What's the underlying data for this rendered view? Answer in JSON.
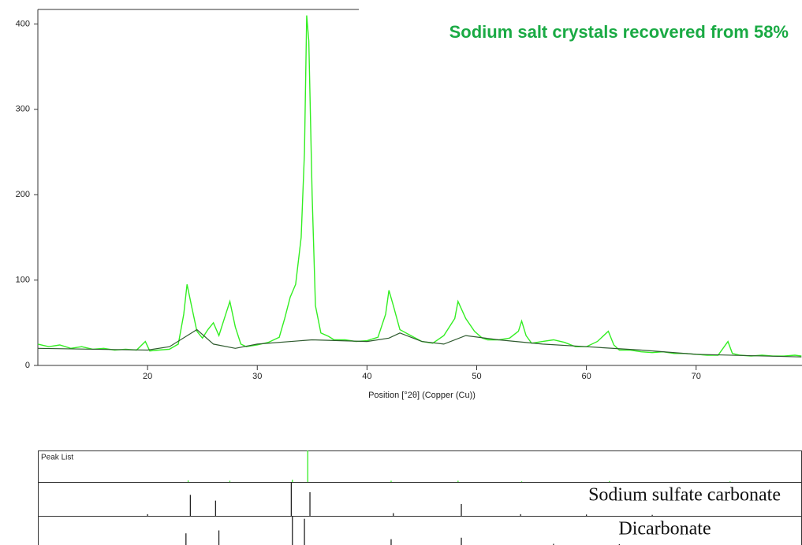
{
  "chart_data": [
    {
      "type": "line",
      "title": "Sodium salt crystals recovered from 58%",
      "x_label": "Position [°2θ] (Copper (Cu))",
      "xlim": [
        10,
        79.65
      ],
      "ylim": [
        0,
        417
      ],
      "xticks": [
        20,
        30,
        40,
        50,
        60,
        70
      ],
      "yticks": [
        0,
        100,
        200,
        300,
        400
      ],
      "series": [
        {
          "color": "#33ee22",
          "x": [
            10,
            11,
            12,
            13,
            14,
            15,
            16,
            17,
            18,
            19,
            19.8,
            20.2,
            21,
            22,
            22.8,
            23.3,
            23.6,
            24,
            24.5,
            25,
            25.5,
            26,
            26.5,
            27,
            27.5,
            28,
            28.5,
            29,
            30,
            31,
            32,
            32.5,
            33,
            33.5,
            34,
            34.3,
            34.5,
            34.7,
            35,
            35.3,
            35.8,
            36.5,
            37,
            38,
            39,
            40,
            41,
            41.7,
            42,
            42.4,
            43,
            44,
            45,
            46,
            47,
            48,
            48.3,
            49,
            49.8,
            50.5,
            51,
            52,
            53,
            53.8,
            54.1,
            54.5,
            55,
            56,
            57,
            58,
            59,
            60,
            61,
            62,
            62.5,
            63,
            64,
            65,
            66,
            67,
            68,
            69,
            70,
            71,
            72,
            72.9,
            73.3,
            74,
            75,
            76,
            77,
            78,
            79,
            79.6
          ],
          "values": [
            25,
            22,
            24,
            20,
            22,
            19,
            20,
            18,
            19,
            18,
            28,
            17,
            18,
            19,
            25,
            60,
            95,
            70,
            40,
            32,
            42,
            50,
            35,
            55,
            75,
            45,
            25,
            22,
            24,
            27,
            33,
            55,
            80,
            95,
            150,
            250,
            410,
            380,
            200,
            70,
            38,
            34,
            30,
            30,
            28,
            29,
            33,
            60,
            88,
            70,
            42,
            35,
            28,
            26,
            35,
            55,
            75,
            55,
            40,
            32,
            30,
            30,
            32,
            40,
            52,
            35,
            26,
            28,
            30,
            27,
            22,
            22,
            28,
            40,
            24,
            18,
            18,
            16,
            15,
            16,
            14,
            14,
            13,
            12,
            12,
            28,
            14,
            12,
            11,
            12,
            11,
            11,
            12,
            11
          ]
        },
        {
          "color": "#2e5a2e",
          "x": [
            10,
            20,
            22,
            24.5,
            26,
            28,
            30,
            35,
            40,
            42,
            43,
            45,
            47,
            49,
            52,
            56,
            60,
            65,
            70,
            79.6
          ],
          "values": [
            20,
            18,
            22,
            42,
            25,
            20,
            25,
            30,
            28,
            32,
            38,
            28,
            25,
            35,
            30,
            25,
            22,
            18,
            13,
            10
          ]
        }
      ]
    },
    {
      "type": "stick",
      "title": "Peak List",
      "color": "#33ee22",
      "x": [
        23.7,
        27.5,
        33.2,
        34.6,
        42.2,
        48.3,
        54.1,
        62.1,
        73.1
      ],
      "values": [
        5,
        4,
        7,
        100,
        4,
        4,
        2,
        3,
        2
      ]
    },
    {
      "type": "stick",
      "title": "Sodium sulfate carbonate",
      "color": "#222222",
      "x": [
        20,
        23.9,
        26.2,
        33.1,
        34.8,
        42.4,
        48.6,
        54,
        60,
        66
      ],
      "values": [
        5,
        62,
        45,
        100,
        70,
        8,
        35,
        5,
        4,
        3
      ]
    },
    {
      "type": "stick",
      "title": "Dicarbonate",
      "color": "#222222",
      "x": [
        23.5,
        26.5,
        33.2,
        34.3,
        42.2,
        48.6,
        57,
        63
      ],
      "values": [
        40,
        50,
        100,
        90,
        20,
        25,
        4,
        3
      ]
    }
  ]
}
